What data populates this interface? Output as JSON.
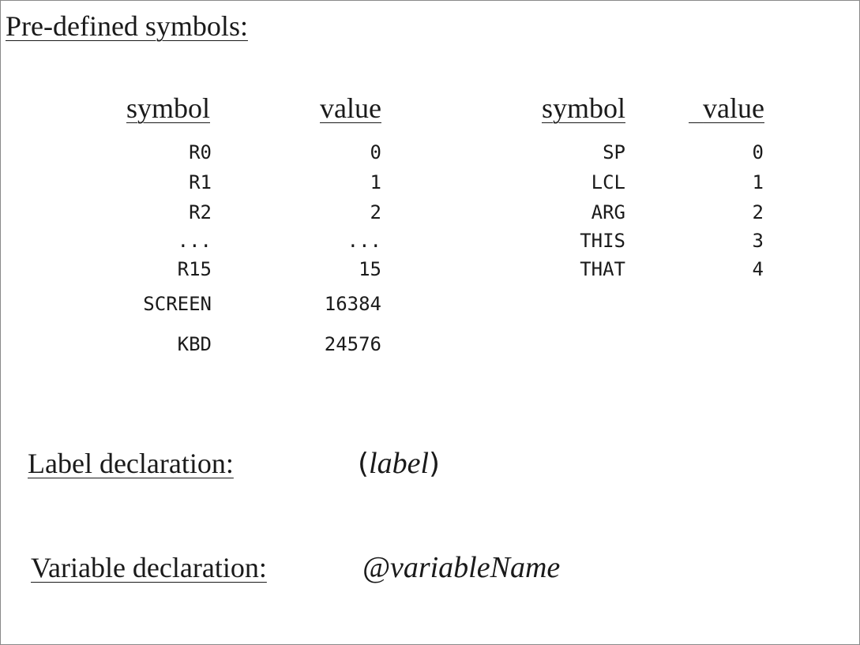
{
  "title": "Pre-defined symbols:",
  "table_left": {
    "header_symbol": "symbol",
    "header_value": "value",
    "rows": [
      {
        "symbol": "R0",
        "value": "0"
      },
      {
        "symbol": "R1",
        "value": "1"
      },
      {
        "symbol": "R2",
        "value": "2"
      },
      {
        "symbol": "...",
        "value": "..."
      },
      {
        "symbol": "R15",
        "value": "15"
      },
      {
        "symbol": "SCREEN",
        "value": "16384"
      },
      {
        "symbol": "KBD",
        "value": "24576"
      }
    ]
  },
  "table_right": {
    "header_symbol": "symbol",
    "header_value": "value",
    "rows": [
      {
        "symbol": "SP",
        "value": "0"
      },
      {
        "symbol": "LCL",
        "value": "1"
      },
      {
        "symbol": "ARG",
        "value": "2"
      },
      {
        "symbol": "THIS",
        "value": "3"
      },
      {
        "symbol": "THAT",
        "value": "4"
      }
    ]
  },
  "label_declaration": {
    "heading": "Label declaration:",
    "open_paren": "(",
    "example": "label",
    "close_paren": ")"
  },
  "variable_declaration": {
    "heading": "Variable declaration:",
    "example": "@variableName"
  }
}
